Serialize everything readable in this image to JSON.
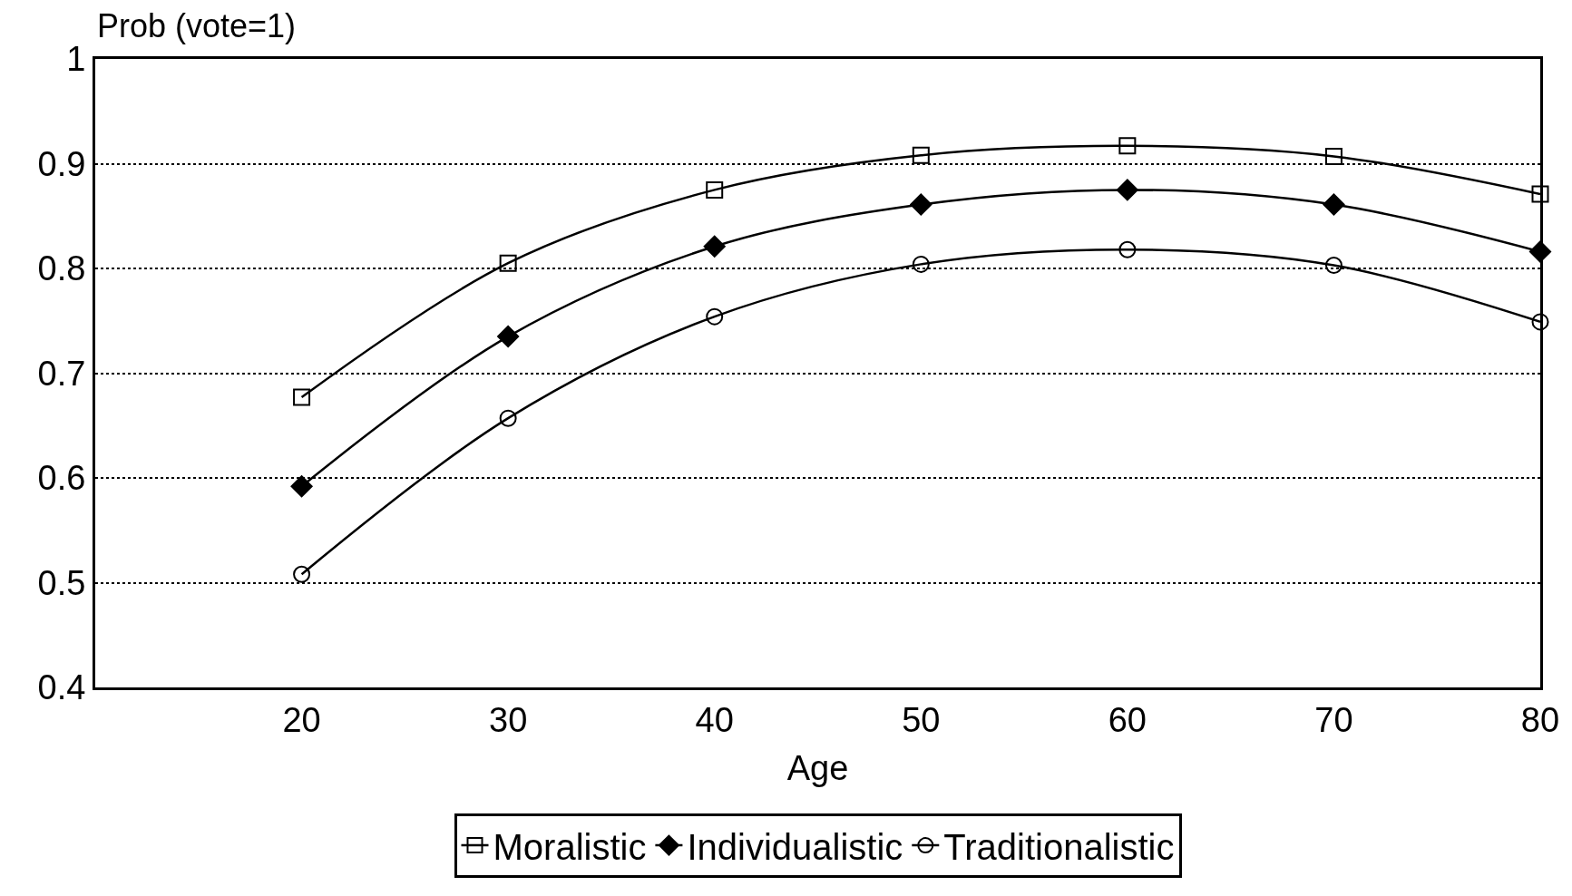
{
  "chart_data": {
    "type": "line",
    "xlabel": "Age",
    "ylabel": "Prob (vote=1)",
    "x": [
      20,
      30,
      40,
      50,
      60,
      70,
      80
    ],
    "series": [
      {
        "name": "Moralistic",
        "color": "#000000",
        "marker": "square",
        "values": [
          0.677,
          0.805,
          0.875,
          0.908,
          0.917,
          0.907,
          0.871
        ]
      },
      {
        "name": "Individualistic",
        "color": "#000000",
        "marker": "diamond",
        "values": [
          0.592,
          0.735,
          0.821,
          0.861,
          0.875,
          0.861,
          0.816
        ]
      },
      {
        "name": "Traditionalistic",
        "color": "#000000",
        "marker": "circle",
        "values": [
          0.508,
          0.657,
          0.754,
          0.804,
          0.818,
          0.803,
          0.749
        ]
      }
    ],
    "xlim": [
      10,
      80
    ],
    "xticks": [
      20,
      30,
      40,
      50,
      60,
      70,
      80
    ],
    "ylim": [
      0.4,
      1
    ],
    "yticks": [
      0.4,
      0.5,
      0.6,
      0.7,
      0.8,
      0.9,
      1
    ],
    "grid": "y",
    "legend": "bottom",
    "line_style": "solid"
  }
}
